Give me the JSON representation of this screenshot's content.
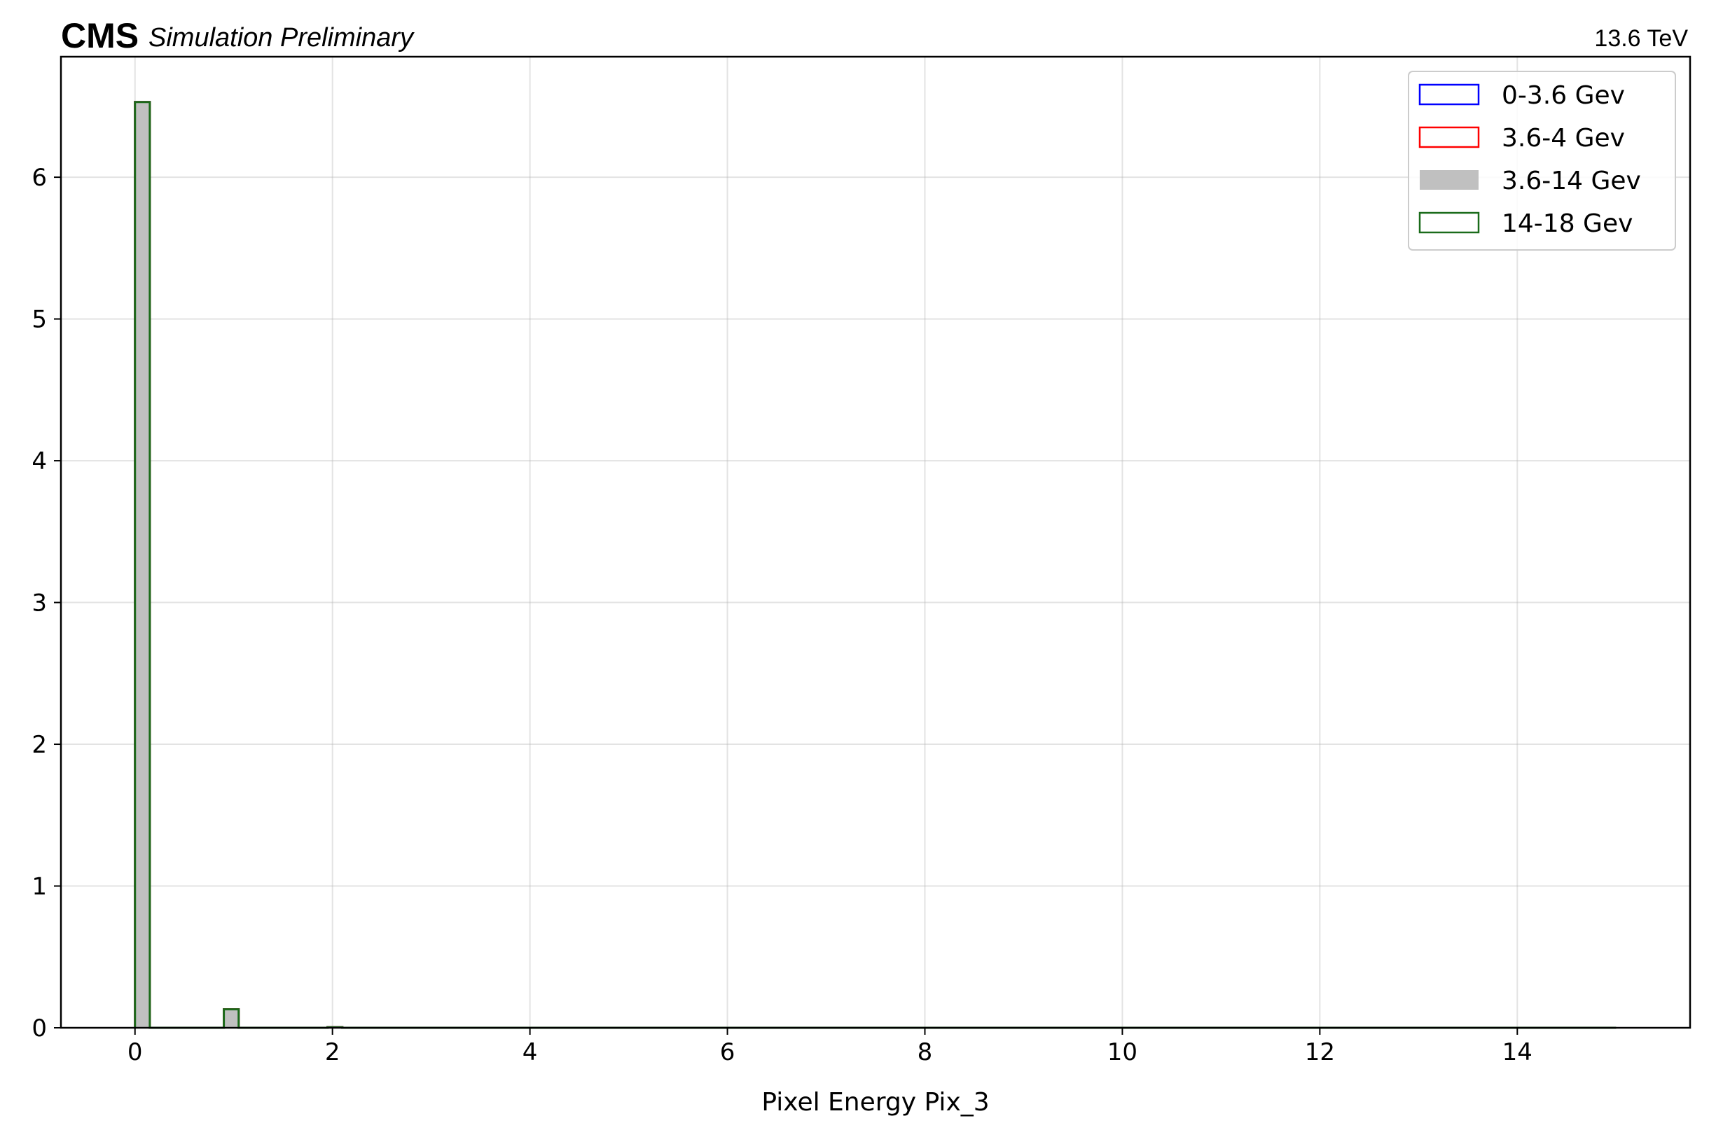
{
  "header": {
    "experiment": "CMS",
    "status": "Simulation Preliminary",
    "energy": "13.6 TeV"
  },
  "chart_data": {
    "type": "histogram",
    "xlabel": "Pixel Energy Pix_3",
    "ylabel": "",
    "xlim": [
      -0.75,
      15.75
    ],
    "ylim": [
      0,
      6.85
    ],
    "grid": true,
    "legend_position": "top-right",
    "xticks": [
      0,
      2,
      4,
      6,
      8,
      10,
      12,
      14
    ],
    "yticks": [
      0,
      1,
      2,
      3,
      4,
      5,
      6
    ],
    "bin_edges_range": [
      0,
      15
    ],
    "bin_width": 0.15,
    "series": [
      {
        "name": "0-3.6 Gev",
        "style": "step",
        "color": "#0000ff",
        "bins": [
          [
            0,
            6.53
          ],
          [
            0.9,
            0.13
          ],
          [
            1.95,
            0.004
          ]
        ]
      },
      {
        "name": "3.6-4 Gev",
        "style": "step",
        "color": "#ff0000",
        "bins": [
          [
            0,
            6.53
          ],
          [
            0.9,
            0.13
          ],
          [
            1.95,
            0.004
          ]
        ]
      },
      {
        "name": "3.6-14 Gev",
        "style": "filled",
        "color": "#c0c0c0",
        "bins": [
          [
            0,
            6.53
          ],
          [
            0.9,
            0.13
          ],
          [
            1.95,
            0.004
          ]
        ]
      },
      {
        "name": "14-18 Gev",
        "style": "step",
        "color": "#1a6b1a",
        "bins": [
          [
            0,
            6.53
          ],
          [
            0.9,
            0.13
          ],
          [
            1.95,
            0.004
          ]
        ]
      }
    ]
  }
}
